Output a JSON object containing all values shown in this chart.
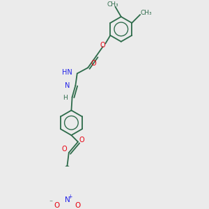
{
  "background_color": "#ebebeb",
  "bond_color": "#2d6b4a",
  "atom_colors": {
    "O": "#e8000e",
    "N": "#2020e8",
    "C": "#2d6b4a",
    "H": "#2d6b4a"
  },
  "figsize": [
    3.0,
    3.0
  ],
  "dpi": 100,
  "xlim": [
    0,
    10
  ],
  "ylim": [
    0,
    10
  ]
}
